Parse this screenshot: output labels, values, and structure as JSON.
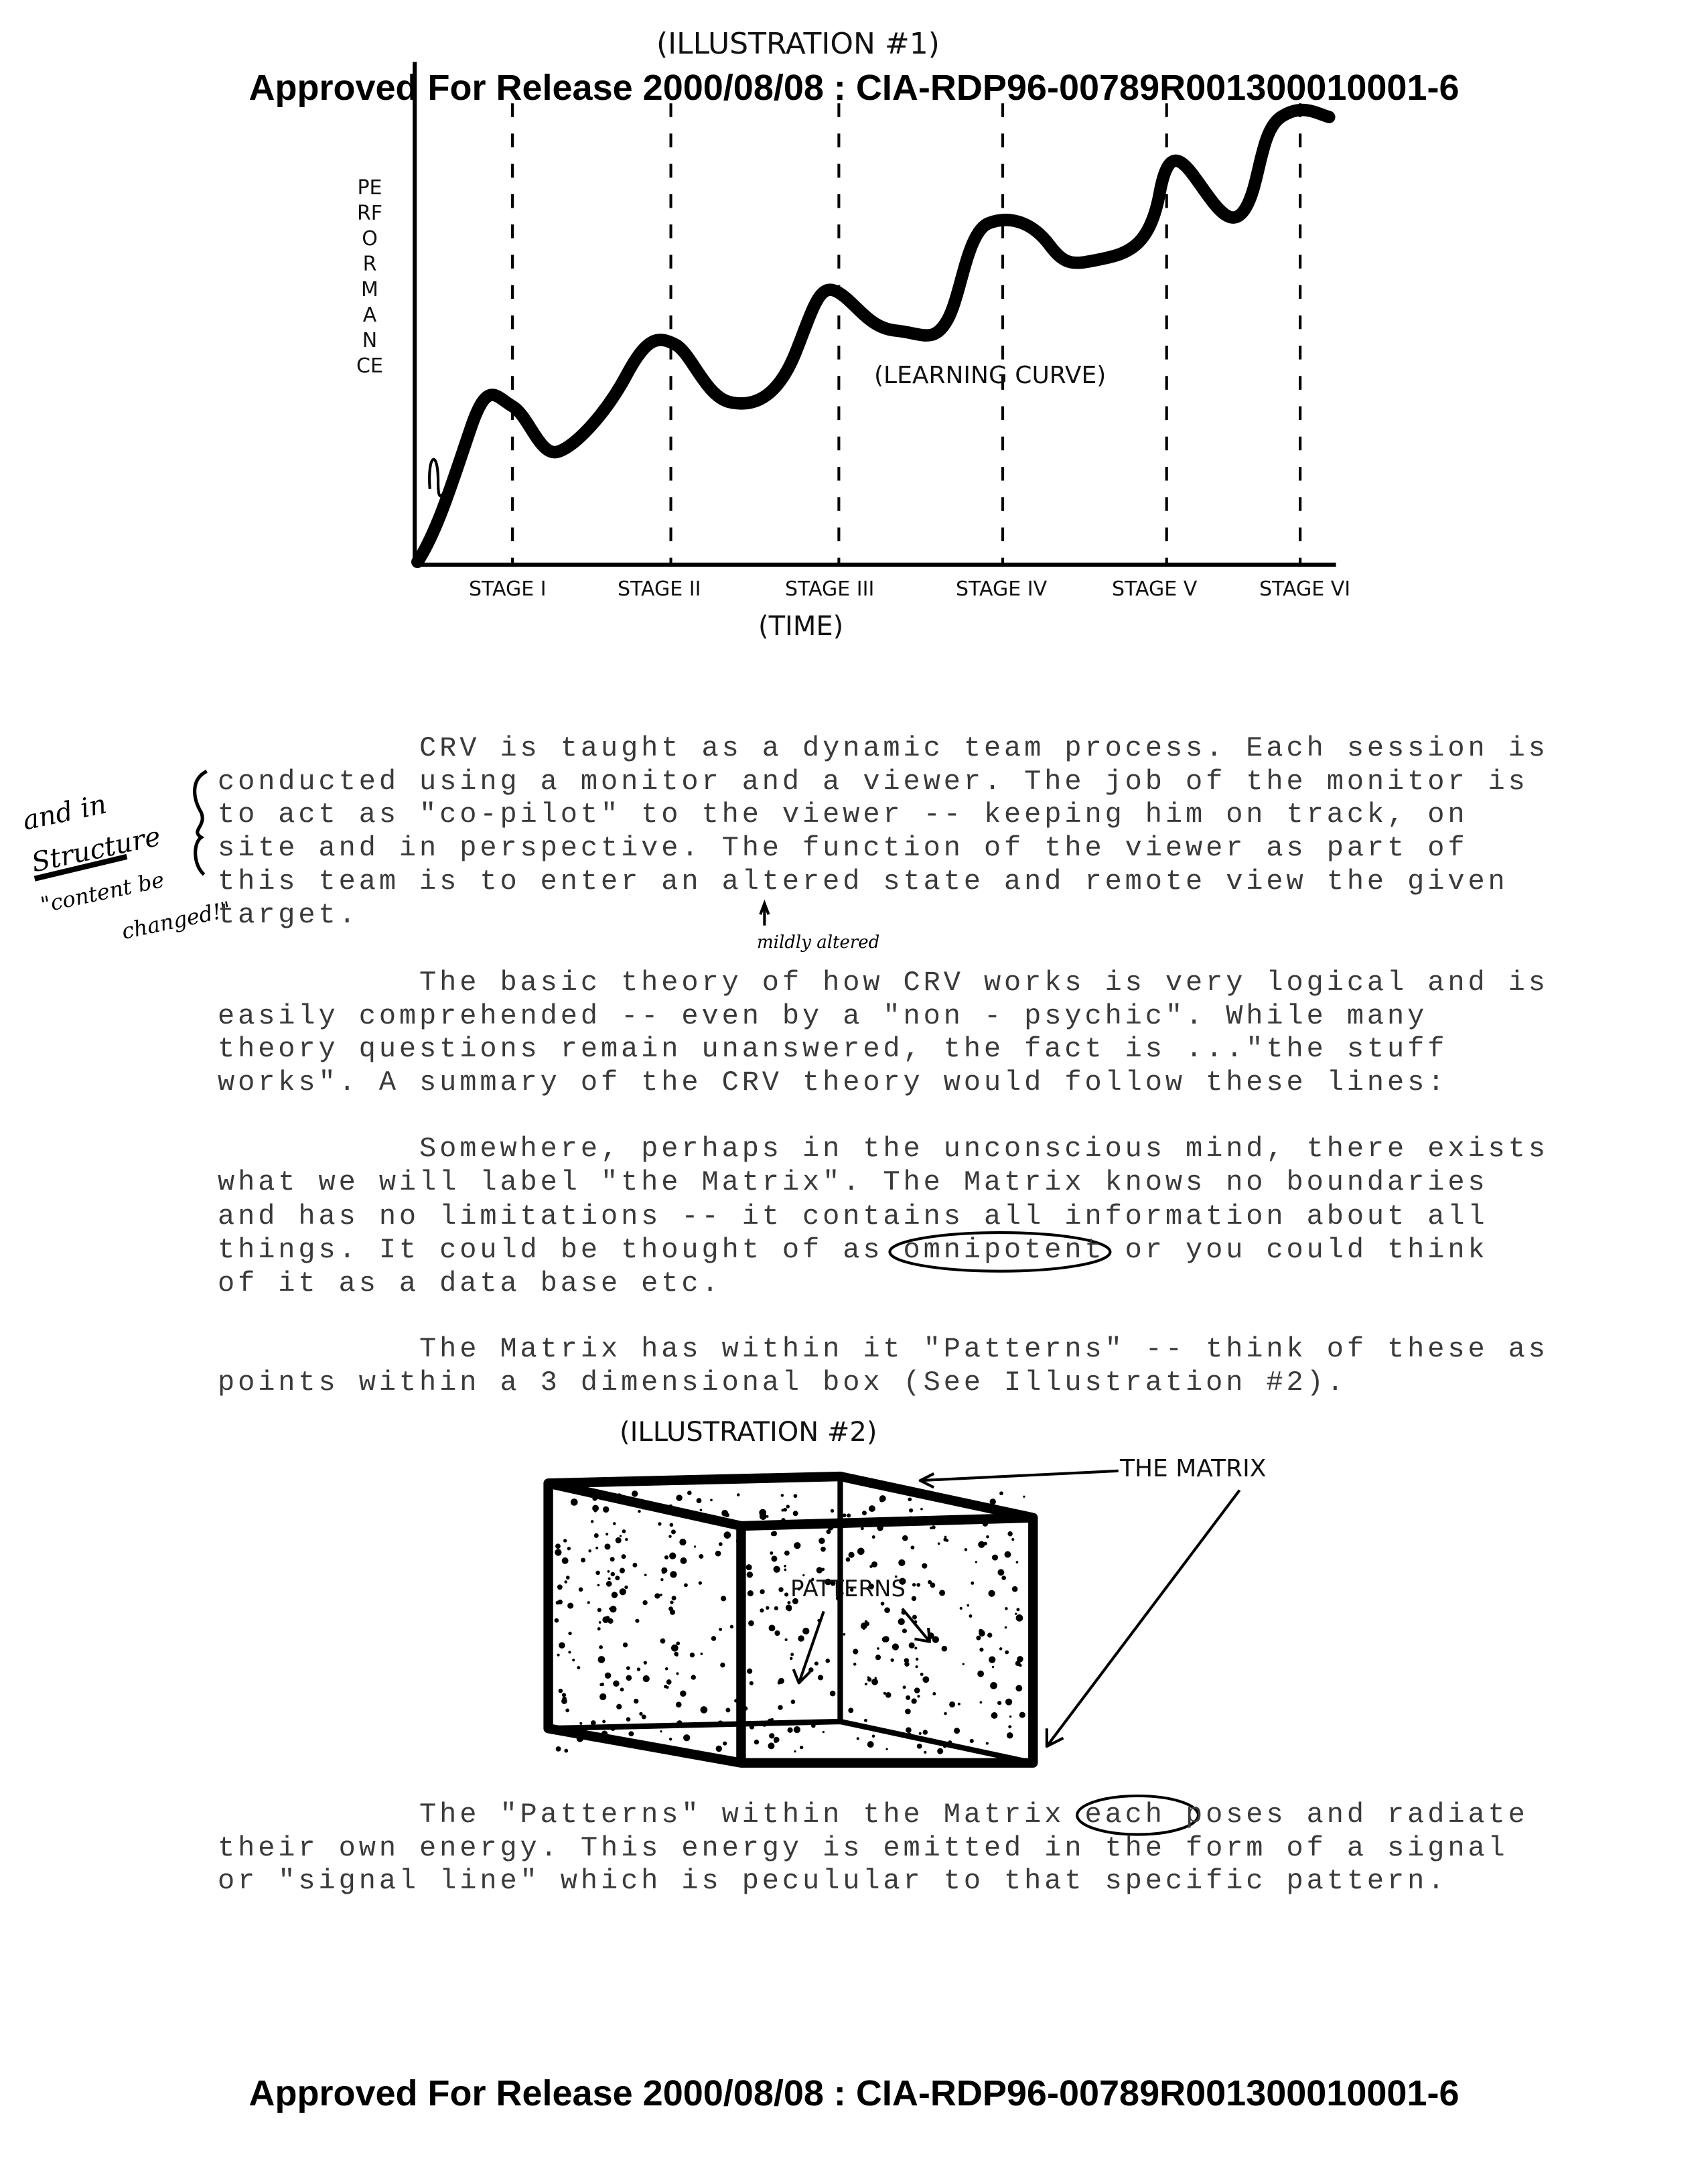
{
  "header_stamp": "Approved For Release 2000/08/08 : CIA-RDP96-00789R001300010001-6",
  "footer_stamp": "Approved For Release 2000/08/08 : CIA-RDP96-00789R001300010001-6",
  "illustration1": {
    "title": "(ILLUSTRATION #1)",
    "y_label": "PERFORMANCE",
    "x_label": "(TIME)",
    "curve_label": "(LEARNING CURVE)",
    "stages": [
      "STAGE I",
      "STAGE II",
      "STAGE III",
      "STAGE IV",
      "STAGE V",
      "STAGE VI"
    ]
  },
  "margin_note": {
    "line1": "and in",
    "line2": "Structure",
    "line3": "\"content be",
    "line4": "changed!\""
  },
  "insert_note": "mildly altered",
  "paragraphs": [
    [
      "          CRV is taught as a dynamic team process. Each session is",
      "conducted using a monitor and a viewer. The job of the monitor is",
      "to act as \"co-pilot\" to the viewer -- keeping him on track, on",
      "site and in perspective. The function of the viewer as part of",
      "this team is to enter an altered state and remote view the given",
      "target."
    ],
    [
      "          The basic theory of how CRV works is very logical and is",
      "easily comprehended -- even by a \"non - psychic\". While many",
      "theory questions remain unanswered, the fact is ...\"the stuff",
      "works\". A summary of the CRV theory would follow these lines:"
    ],
    [
      "          Somewhere, perhaps in the unconscious mind, there exists",
      "what we will label \"the Matrix\". The Matrix knows no boundaries",
      "and has no limitations -- it contains all information about all",
      "things. It could be thought of as omnipotent or you could think",
      "of it as a data base etc."
    ],
    [
      "          The Matrix has within it \"Patterns\" -- think of these as",
      "points within a 3 dimensional box (See Illustration #2)."
    ],
    [
      "          The \"Patterns\" within the Matrix each poses and radiate",
      "their own energy. This energy is emitted in the form of a signal",
      "or \"signal line\" which is peculular to that specific pattern."
    ]
  ],
  "illustration2": {
    "title": "(ILLUSTRATION #2)",
    "matrix_label": "THE MATRIX",
    "patterns_label": "PATTERNS"
  }
}
